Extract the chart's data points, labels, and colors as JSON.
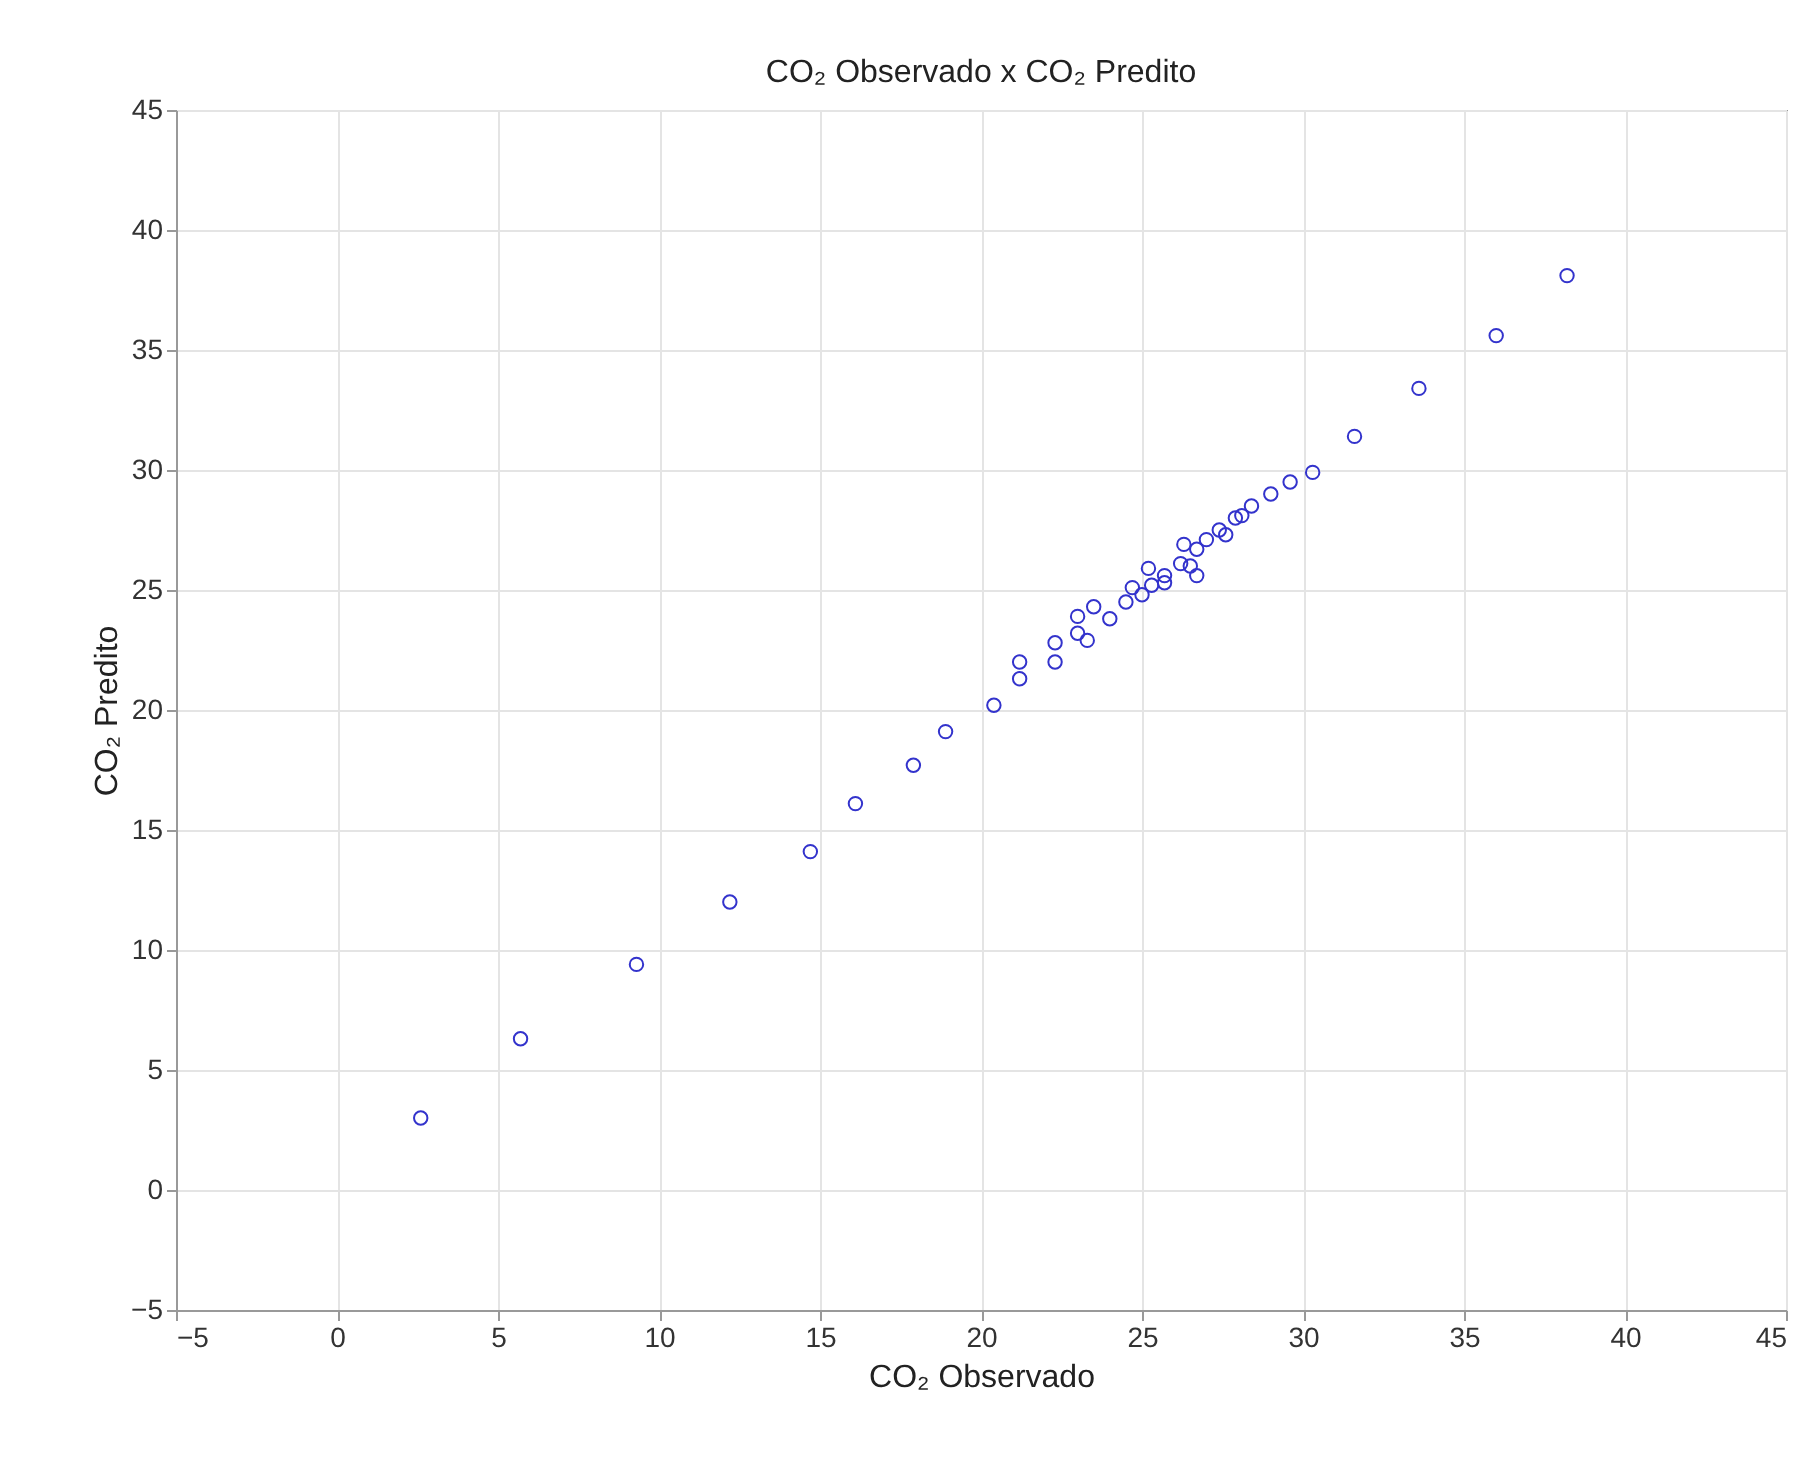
{
  "chart_data": {
    "type": "scatter",
    "title": "CO₂ Observado x CO₂ Predito",
    "xlabel": "CO₂ Observado",
    "ylabel": "CO₂ Predito",
    "xlim": [
      -5,
      45
    ],
    "xticks": [
      -5,
      0,
      5,
      10,
      15,
      20,
      25,
      30,
      35,
      40,
      45
    ],
    "ylim": [
      -5,
      45
    ],
    "yticks": [
      -5,
      0,
      5,
      10,
      15,
      20,
      25,
      30,
      35,
      40,
      45
    ],
    "grid": true,
    "marker": "circle",
    "series": [
      {
        "color": "#3333cc",
        "x": [
          2.6,
          5.7,
          9.3,
          12.2,
          14.7,
          16.1,
          17.9,
          18.9,
          20.4,
          21.2,
          21.2,
          22.3,
          22.3,
          23.0,
          23.0,
          23.3,
          23.5,
          24.0,
          24.5,
          24.7,
          25.0,
          25.2,
          25.3,
          25.7,
          25.7,
          26.2,
          26.3,
          26.5,
          26.7,
          26.7,
          27.0,
          27.4,
          27.6,
          27.9,
          28.1,
          28.4,
          29.0,
          29.6,
          30.3,
          31.6,
          33.6,
          36.0,
          38.2
        ],
        "values": [
          3.0,
          6.3,
          9.4,
          12.0,
          14.1,
          16.1,
          17.7,
          19.1,
          20.2,
          21.3,
          22.0,
          22.0,
          22.8,
          23.2,
          23.9,
          22.9,
          24.3,
          23.8,
          24.5,
          25.1,
          24.8,
          25.9,
          25.2,
          25.6,
          25.3,
          26.1,
          26.9,
          26.0,
          25.6,
          26.7,
          27.1,
          27.5,
          27.3,
          28.0,
          28.1,
          28.5,
          29.0,
          29.5,
          29.9,
          31.4,
          33.4,
          35.6,
          38.1
        ]
      }
    ]
  }
}
